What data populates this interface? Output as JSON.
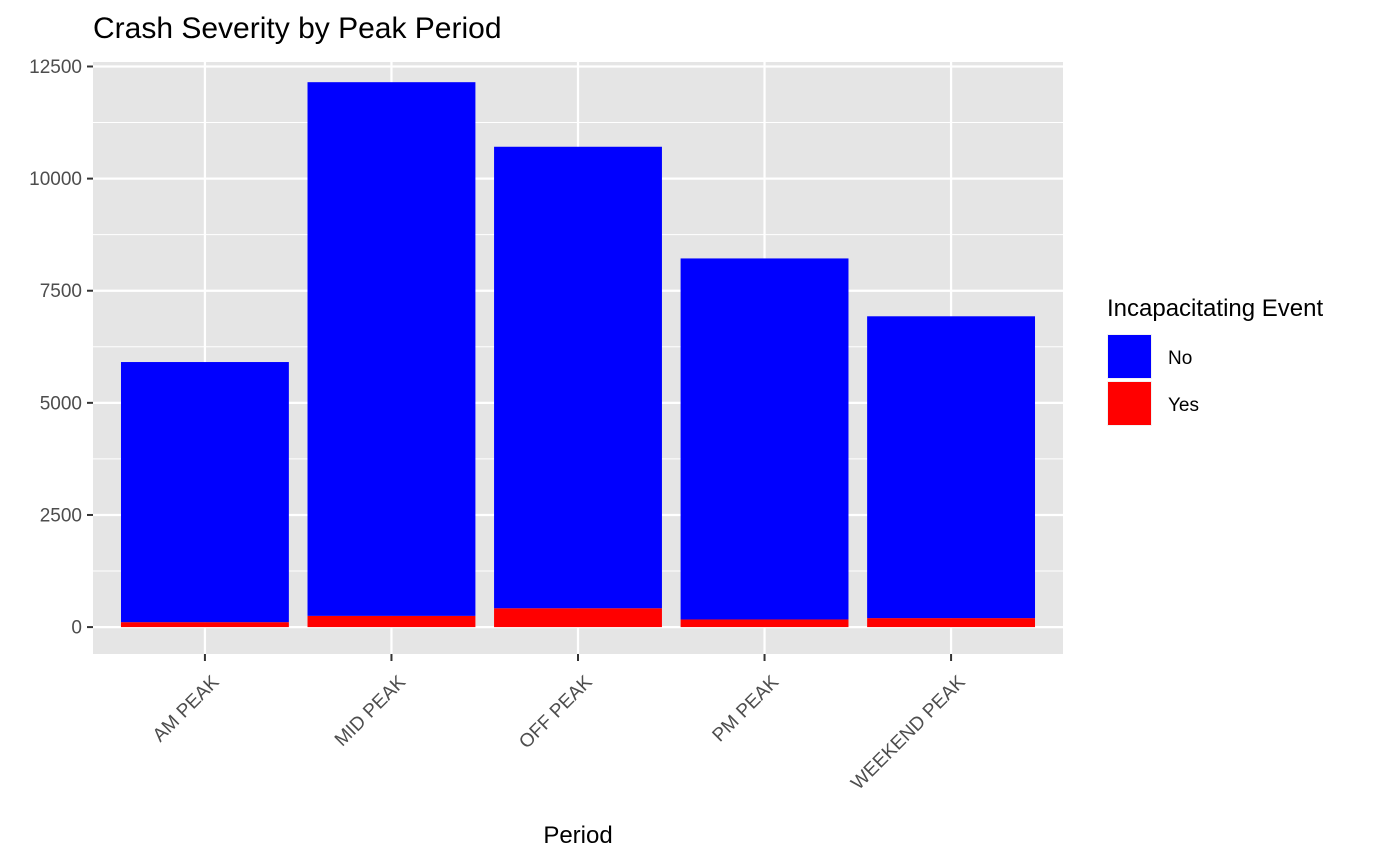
{
  "chart_data": {
    "type": "bar",
    "stacked": true,
    "title": "Crash Severity by Peak Period",
    "xlabel": "Period",
    "ylabel": "",
    "categories": [
      "AM PEAK",
      "MID PEAK",
      "OFF PEAK",
      "PM PEAK",
      "WEEKEND PEAK"
    ],
    "series": [
      {
        "name": "No",
        "values": [
          5800,
          11900,
          10290,
          8050,
          6730
        ],
        "color": "#0000ff"
      },
      {
        "name": "Yes",
        "values": [
          110,
          250,
          420,
          170,
          200
        ],
        "color": "#ff0000"
      }
    ],
    "ylim": [
      -600,
      12600
    ],
    "yticks": [
      0,
      2500,
      5000,
      7500,
      10000,
      12500
    ],
    "ytick_labels": [
      "0",
      "2500",
      "5000",
      "7500",
      "10000",
      "12500"
    ],
    "grid": true,
    "panel_background": "#e5e5e5",
    "grid_color": "#ffffff",
    "legend": {
      "title": "Incapacitating Event",
      "placement": "right",
      "entries": [
        "No",
        "Yes"
      ]
    }
  }
}
